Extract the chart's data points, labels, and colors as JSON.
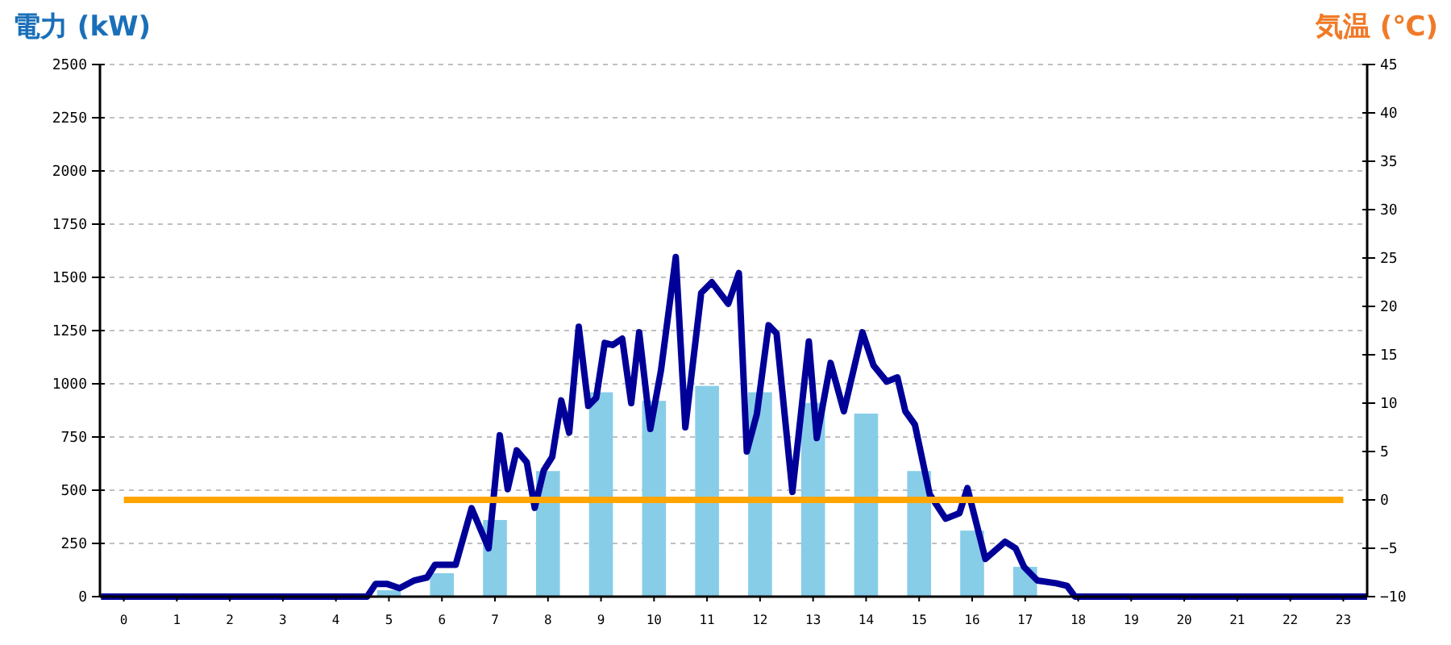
{
  "chart_data": {
    "type": "bar",
    "ylabel": "電力 (kW)",
    "y2label": "気温 (℃)",
    "x": [
      0,
      1,
      2,
      3,
      4,
      5,
      6,
      7,
      8,
      9,
      10,
      11,
      12,
      13,
      14,
      15,
      16,
      17,
      18,
      19,
      20,
      21,
      22,
      23
    ],
    "xlim": [
      -0.45,
      23.45
    ],
    "xticks": [
      0,
      1,
      2,
      3,
      4,
      5,
      6,
      7,
      8,
      9,
      10,
      11,
      12,
      13,
      14,
      15,
      16,
      17,
      18,
      19,
      20,
      21,
      22,
      23
    ],
    "series": [
      {
        "color": "#87cde8",
        "values": [
          0,
          0,
          0,
          0,
          0,
          30,
          110,
          360,
          590,
          960,
          920,
          990,
          960,
          910,
          860,
          590,
          310,
          140,
          null,
          0,
          0,
          0,
          0,
          0
        ]
      },
      {
        "type": "line",
        "color": "#000099",
        "x": [
          -0.43,
          4.59,
          4.75,
          4.96,
          5.2,
          5.47,
          5.72,
          5.87,
          6.08,
          6.26,
          6.56,
          6.88,
          7.09,
          7.24,
          7.41,
          7.6,
          7.75,
          7.92,
          8.08,
          8.25,
          8.4,
          8.58,
          8.76,
          8.91,
          9.07,
          9.22,
          9.4,
          9.57,
          9.72,
          9.93,
          10.13,
          10.41,
          10.59,
          10.89,
          11.09,
          11.4,
          11.6,
          11.75,
          11.94,
          12.16,
          12.31,
          12.61,
          12.92,
          13.07,
          13.33,
          13.58,
          13.93,
          14.14,
          14.39,
          14.59,
          14.74,
          14.92,
          15.2,
          15.5,
          15.76,
          15.91,
          16.25,
          16.62,
          16.82,
          16.98,
          17.23,
          17.58,
          17.79,
          17.94,
          23.45
        ],
        "values": [
          0,
          0,
          60,
          60,
          40,
          75,
          90,
          150,
          150,
          150,
          415,
          227,
          758,
          505,
          687,
          631,
          417,
          593,
          657,
          922,
          770,
          1268,
          896,
          934,
          1192,
          1182,
          1212,
          909,
          1242,
          788,
          1061,
          1596,
          795,
          1427,
          1477,
          1376,
          1520,
          682,
          858,
          1275,
          1237,
          492,
          1199,
          745,
          1098,
          871,
          1242,
          1086,
          1010,
          1030,
          871,
          808,
          480,
          366,
          392,
          510,
          177,
          258,
          227,
          139,
          76,
          63,
          51,
          0,
          0
        ]
      },
      {
        "type": "line",
        "axis": "y2",
        "color": "#ffa500",
        "values": [
          0,
          0,
          0,
          0,
          0,
          0,
          0,
          0,
          0,
          0,
          0,
          0,
          0,
          0,
          0,
          0,
          0,
          0,
          0,
          0,
          0,
          0,
          0,
          0
        ]
      }
    ],
    "ylim": [
      0,
      2500
    ],
    "yticks": [
      0,
      250,
      500,
      750,
      1000,
      1250,
      1500,
      1750,
      2000,
      2250,
      2500
    ],
    "y2lim": [
      -10,
      45
    ],
    "y2ticks": [
      -10,
      -5,
      0,
      5,
      10,
      15,
      20,
      25,
      30,
      35,
      40,
      45
    ],
    "grid": "y"
  }
}
